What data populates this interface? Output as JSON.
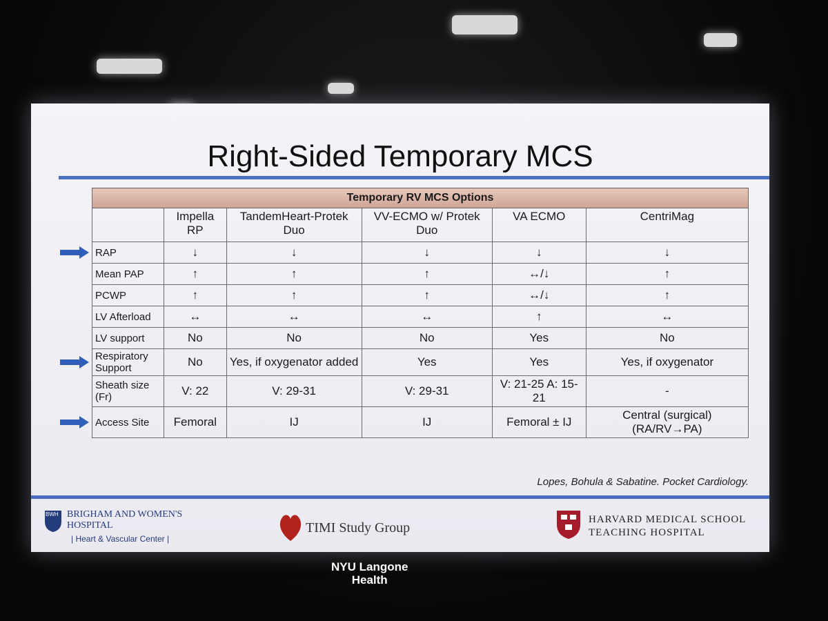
{
  "slide": {
    "title": "Right-Sided Temporary MCS",
    "table": {
      "group_header": "Temporary RV MCS Options",
      "columns": [
        "Impella RP",
        "TandemHeart-Protek Duo",
        "VV-ECMO w/ Protek Duo",
        "VA ECMO",
        "CentriMag"
      ],
      "rows": [
        {
          "label": "RAP",
          "cells": [
            "↓",
            "↓",
            "↓",
            "↓",
            "↓"
          ]
        },
        {
          "label": "Mean PAP",
          "cells": [
            "↑",
            "↑",
            "↑",
            "↔/↓",
            "↑"
          ]
        },
        {
          "label": "PCWP",
          "cells": [
            "↑",
            "↑",
            "↑",
            "↔/↓",
            "↑"
          ]
        },
        {
          "label": "LV Afterload",
          "cells": [
            "↔",
            "↔",
            "↔",
            "↑",
            "↔"
          ]
        },
        {
          "label": "LV support",
          "cells": [
            "No",
            "No",
            "No",
            "Yes",
            "No"
          ]
        },
        {
          "label": "Respiratory Support",
          "cells": [
            "No",
            "Yes, if oxygenator added",
            "Yes",
            "Yes",
            "Yes, if oxygenator"
          ]
        },
        {
          "label": "Sheath size (Fr)",
          "cells": [
            "V: 22",
            "V: 29-31",
            "V: 29-31",
            "V: 21-25 A: 15-21",
            "-"
          ]
        },
        {
          "label": "Access Site",
          "cells": [
            "Femoral",
            "IJ",
            "IJ",
            "Femoral ± IJ",
            "Central (surgical) (RA/RV→PA)"
          ]
        }
      ]
    },
    "citation": "Lopes, Bohula & Sabatine. Pocket Cardiology."
  },
  "logos": {
    "bwh": {
      "abbr": "BWH",
      "name": "BRIGHAM AND WOMEN'S HOSPITAL",
      "center": "| Heart & Vascular Center |"
    },
    "timi": "TIMI Study Group",
    "harvard": [
      "HARVARD MEDICAL SCHOOL",
      "TEACHING HOSPITAL"
    ]
  },
  "venue": [
    "NYU Langone",
    "Health"
  ]
}
